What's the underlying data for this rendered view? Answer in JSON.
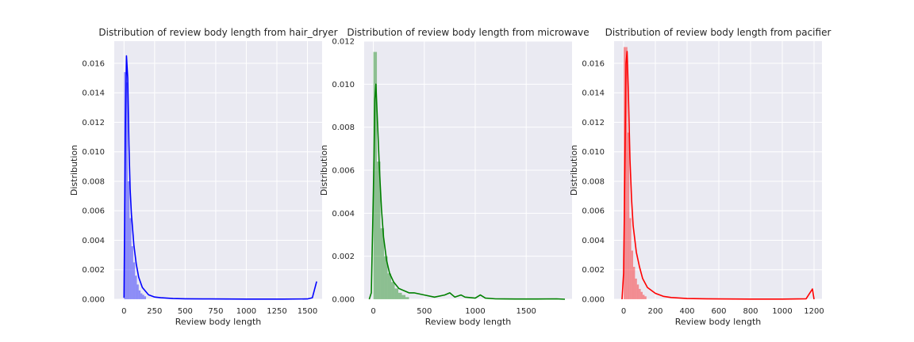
{
  "chart_data": [
    {
      "type": "histogram",
      "title": "Distribution of review body length from hair_dryer",
      "xlabel": "Review body length",
      "ylabel": "Distribution",
      "xlim": [
        -80,
        1620
      ],
      "ylim": [
        0,
        0.0175
      ],
      "xticks": [
        "0",
        "250",
        "500",
        "750",
        "1000",
        "1250",
        "1500"
      ],
      "xtick_values": [
        0,
        250,
        500,
        750,
        1000,
        1250,
        1500
      ],
      "yticks": [
        "0.000",
        "0.002",
        "0.004",
        "0.006",
        "0.008",
        "0.010",
        "0.012",
        "0.014",
        "0.016"
      ],
      "ytick_values": [
        0,
        0.002,
        0.004,
        0.006,
        0.008,
        0.01,
        0.012,
        0.014,
        0.016
      ],
      "color": "#0000ff",
      "bin_edges": [
        0,
        15,
        30,
        45,
        60,
        75,
        90,
        105,
        120,
        135,
        150,
        165,
        180
      ],
      "bin_values": [
        0.0154,
        0.0147,
        0.008,
        0.0055,
        0.0036,
        0.0025,
        0.0016,
        0.001,
        0.0006,
        0.0004,
        0.0003,
        0.0002
      ],
      "kde_x": [
        0,
        10,
        20,
        30,
        40,
        50,
        60,
        80,
        100,
        120,
        150,
        200,
        250,
        300,
        400,
        500,
        700,
        1000,
        1300,
        1500,
        1540,
        1575
      ],
      "kde_y": [
        0.0001,
        0.011,
        0.0165,
        0.015,
        0.0105,
        0.0075,
        0.0058,
        0.0037,
        0.0024,
        0.0015,
        0.0008,
        0.0003,
        0.00015,
        0.0001,
        5e-05,
        3e-05,
        2e-05,
        1e-05,
        1e-05,
        2e-05,
        0.0001,
        0.0012
      ]
    },
    {
      "type": "histogram",
      "title": "Distribution of review body length from microwave",
      "xlabel": "Review body length",
      "ylabel": "Distribution",
      "xlim": [
        -90,
        1950
      ],
      "ylim": [
        0,
        0.012
      ],
      "xticks": [
        "0",
        "500",
        "1000",
        "1500"
      ],
      "xtick_values": [
        0,
        500,
        1000,
        1500
      ],
      "yticks": [
        "0.000",
        "0.002",
        "0.004",
        "0.006",
        "0.008",
        "0.010",
        "0.012"
      ],
      "ytick_values": [
        0,
        0.002,
        0.004,
        0.006,
        0.008,
        0.01,
        0.012
      ],
      "color": "#008000",
      "bin_edges": [
        0,
        35,
        70,
        105,
        140,
        175,
        210,
        245,
        280,
        315,
        350
      ],
      "bin_values": [
        0.0115,
        0.0064,
        0.0033,
        0.002,
        0.0012,
        0.0008,
        0.0005,
        0.0003,
        0.0002,
        0.0001
      ],
      "kde_x": [
        -40,
        -20,
        0,
        15,
        25,
        40,
        60,
        80,
        100,
        130,
        160,
        200,
        250,
        300,
        350,
        400,
        500,
        600,
        700,
        750,
        800,
        860,
        900,
        1000,
        1050,
        1100,
        1200,
        1400,
        1600,
        1800,
        1880
      ],
      "kde_y": [
        0,
        0.0003,
        0.005,
        0.0093,
        0.01,
        0.0083,
        0.006,
        0.0042,
        0.0029,
        0.0018,
        0.0012,
        0.0008,
        0.0005,
        0.0004,
        0.0003,
        0.0003,
        0.0002,
        0.0001,
        0.0002,
        0.0003,
        0.0001,
        0.0002,
        0.0001,
        5e-05,
        0.0002,
        5e-05,
        2e-05,
        1e-05,
        1e-05,
        2e-05,
        0.0
      ]
    },
    {
      "type": "histogram",
      "title": "Distribution of review body length from pacifier",
      "xlabel": "Review body length",
      "ylabel": "Distribution",
      "xlim": [
        -60,
        1250
      ],
      "ylim": [
        0,
        0.0175
      ],
      "xticks": [
        "0",
        "200",
        "400",
        "600",
        "800",
        "1000",
        "1200"
      ],
      "xtick_values": [
        0,
        200,
        400,
        600,
        800,
        1000,
        1200
      ],
      "yticks": [
        "0.000",
        "0.002",
        "0.004",
        "0.006",
        "0.008",
        "0.010",
        "0.012",
        "0.014",
        "0.016"
      ],
      "ytick_values": [
        0,
        0.002,
        0.004,
        0.006,
        0.008,
        0.01,
        0.012,
        0.014,
        0.016
      ],
      "color": "#ff0000",
      "bin_edges": [
        0,
        12,
        24,
        36,
        48,
        60,
        72,
        84,
        96,
        108,
        120,
        132,
        144
      ],
      "bin_values": [
        0.0171,
        0.0171,
        0.0113,
        0.0055,
        0.0033,
        0.0022,
        0.0014,
        0.001,
        0.0007,
        0.0005,
        0.0003,
        0.0002
      ],
      "kde_x": [
        -10,
        0,
        10,
        15,
        22,
        30,
        40,
        50,
        60,
        80,
        100,
        120,
        150,
        200,
        250,
        300,
        400,
        600,
        800,
        1000,
        1150,
        1190,
        1200
      ],
      "kde_y": [
        0.0,
        0.0018,
        0.011,
        0.016,
        0.0168,
        0.014,
        0.0095,
        0.0068,
        0.005,
        0.0032,
        0.0022,
        0.0014,
        0.0008,
        0.0004,
        0.0002,
        0.00012,
        5e-05,
        2e-05,
        1e-05,
        1e-05,
        3e-05,
        0.0007,
        0.0
      ]
    }
  ]
}
